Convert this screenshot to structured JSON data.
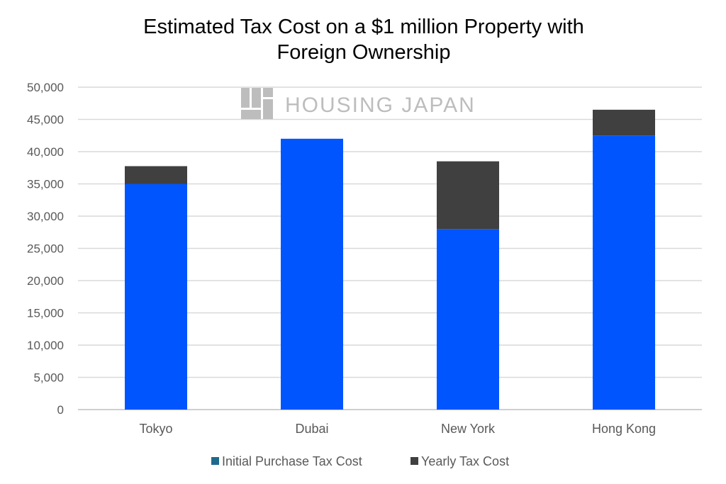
{
  "chart_data": {
    "type": "bar",
    "stacked": true,
    "title": "Estimated Tax Cost on a $1 million Property with Foreign Ownership",
    "title_lines": [
      "Estimated Tax Cost on a $1 million Property with",
      "Foreign Ownership"
    ],
    "watermark": "HOUSING JAPAN",
    "categories": [
      "Tokyo",
      "Dubai",
      "New York",
      "Hong Kong"
    ],
    "series": [
      {
        "name": "Initial Purchase Tax Cost",
        "values": [
          35000,
          42000,
          28000,
          42500
        ],
        "color": "#0055ff",
        "legend_color": "#1f6a8c"
      },
      {
        "name": "Yearly Tax Cost",
        "values": [
          2750,
          0,
          10500,
          4000
        ],
        "color": "#404040",
        "legend_color": "#404040"
      }
    ],
    "xlabel": "",
    "ylabel": "",
    "ylim": [
      0,
      50000
    ],
    "yticks": [
      "0",
      "5,000",
      "10,000",
      "15,000",
      "20,000",
      "25,000",
      "30,000",
      "35,000",
      "40,000",
      "45,000",
      "50,000"
    ],
    "ytick_values": [
      0,
      5000,
      10000,
      15000,
      20000,
      25000,
      30000,
      35000,
      40000,
      45000,
      50000
    ],
    "grid": true,
    "legend_position": "bottom"
  }
}
